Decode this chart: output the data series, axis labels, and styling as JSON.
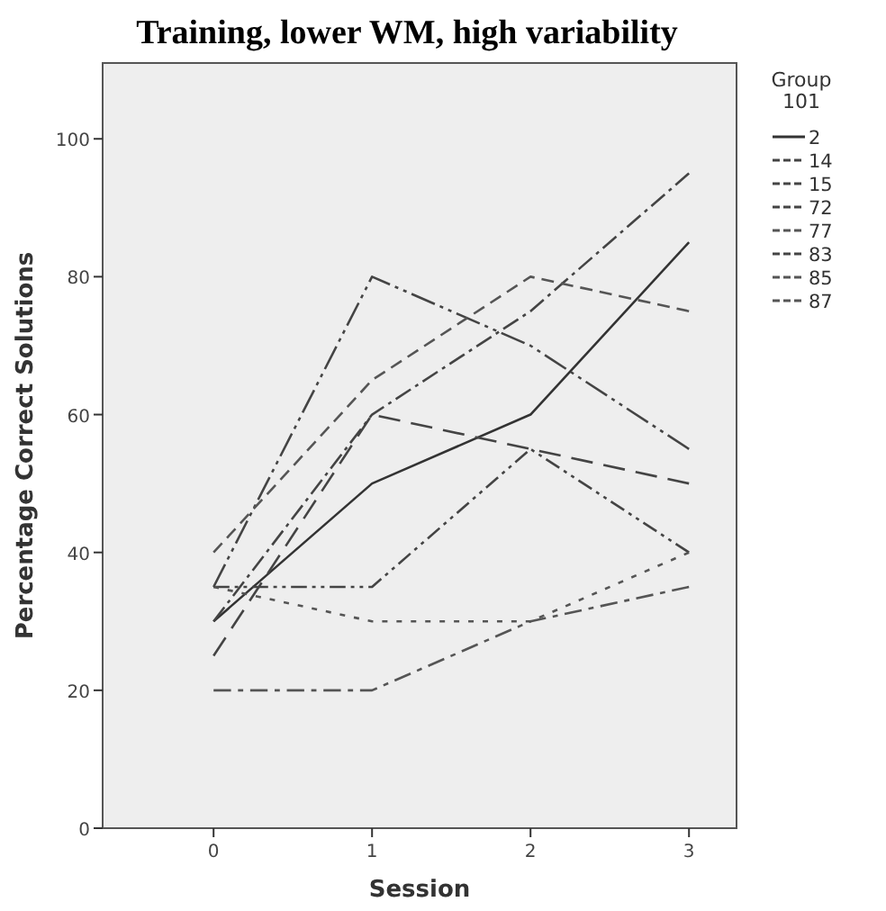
{
  "chart_data": {
    "type": "line",
    "title": "Training, lower WM, high variability",
    "xlabel": "Session",
    "ylabel": "Percentage Correct Solutions",
    "legend_title": "Group\n101",
    "legend": "right",
    "grid": false,
    "marker": "none",
    "x": [
      0,
      1,
      2,
      3
    ],
    "xlim": [
      -0.7,
      3.3
    ],
    "xticks": [
      0,
      1,
      2,
      3
    ],
    "ylim": [
      0,
      111
    ],
    "yticks": [
      0,
      20,
      40,
      60,
      80,
      100
    ],
    "series": [
      {
        "name": "2",
        "color": "#333333",
        "line_style": "solid",
        "values": [
          30,
          50,
          60,
          85
        ]
      },
      {
        "name": "14",
        "color": "#444444",
        "line_style": "dashed",
        "values": [
          30,
          60,
          75,
          95
        ]
      },
      {
        "name": "15",
        "color": "#444444",
        "line_style": "dashed",
        "values": [
          25,
          60,
          55,
          50
        ]
      },
      {
        "name": "72",
        "color": "#444444",
        "line_style": "dashed",
        "values": [
          35,
          35,
          55,
          40
        ]
      },
      {
        "name": "77",
        "color": "#555555",
        "line_style": "dotted",
        "values": [
          35,
          30,
          30,
          40
        ]
      },
      {
        "name": "83",
        "color": "#444444",
        "line_style": "dashed",
        "values": [
          35,
          80,
          70,
          55
        ]
      },
      {
        "name": "85",
        "color": "#555555",
        "line_style": "dashed",
        "values": [
          40,
          65,
          80,
          75
        ]
      },
      {
        "name": "87",
        "color": "#555555",
        "line_style": "dashed",
        "values": [
          20,
          20,
          30,
          35
        ]
      }
    ]
  }
}
